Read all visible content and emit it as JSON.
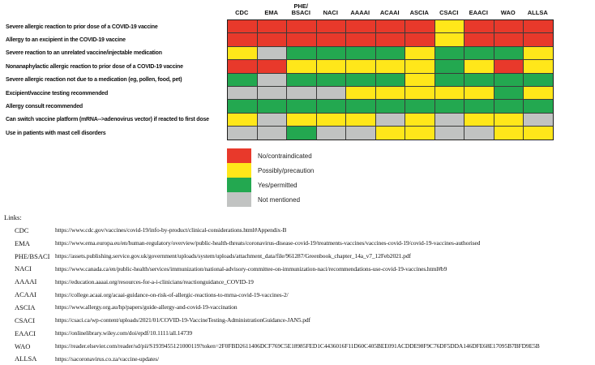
{
  "chart_data": {
    "type": "heatmap",
    "title": "",
    "columns": [
      "CDC",
      "EMA",
      "PHE/\nBSACI",
      "NACI",
      "AAAAI",
      "ACAAI",
      "ASCIA",
      "CSACI",
      "EAACI",
      "WAO",
      "ALLSA"
    ],
    "rows": [
      "Severe allergic reaction to prior dose of a COVID-19 vaccine",
      "Allergy to an excipient in the COVID-19 vaccine",
      "Severe reaction to an unrelated vaccine/injectable medication",
      "Nonanaphylactic allergic reaction to prior dose of a COVID-19 vaccine",
      "Severe allergic reaction not due to a medication (eg, pollen, food, pet)",
      "Excipient/vaccine testing recommended",
      "Allergy consult recommended",
      "Can switch vaccine platform (mRNA-->adenovirus vector) if reacted to first dose",
      "Use in patients with mast cell disorders"
    ],
    "values": [
      [
        "no",
        "no",
        "no",
        "no",
        "no",
        "no",
        "no",
        "possibly",
        "no",
        "no",
        "no"
      ],
      [
        "no",
        "no",
        "no",
        "no",
        "no",
        "no",
        "no",
        "possibly",
        "no",
        "no",
        "no"
      ],
      [
        "possibly",
        "not_mentioned",
        "yes",
        "yes",
        "yes",
        "yes",
        "possibly",
        "yes",
        "yes",
        "yes",
        "possibly"
      ],
      [
        "no",
        "no",
        "possibly",
        "possibly",
        "possibly",
        "possibly",
        "possibly",
        "yes",
        "possibly",
        "no",
        "possibly"
      ],
      [
        "yes",
        "not_mentioned",
        "yes",
        "yes",
        "yes",
        "yes",
        "possibly",
        "yes",
        "yes",
        "yes",
        "yes"
      ],
      [
        "not_mentioned",
        "not_mentioned",
        "not_mentioned",
        "not_mentioned",
        "possibly",
        "possibly",
        "possibly",
        "possibly",
        "possibly",
        "yes",
        "possibly"
      ],
      [
        "yes",
        "yes",
        "yes",
        "yes",
        "yes",
        "yes",
        "yes",
        "yes",
        "yes",
        "yes",
        "yes"
      ],
      [
        "possibly",
        "not_mentioned",
        "possibly",
        "possibly",
        "possibly",
        "not_mentioned",
        "possibly",
        "not_mentioned",
        "possibly",
        "possibly",
        "not_mentioned"
      ],
      [
        "not_mentioned",
        "not_mentioned",
        "yes",
        "not_mentioned",
        "not_mentioned",
        "possibly",
        "possibly",
        "not_mentioned",
        "not_mentioned",
        "possibly",
        "possibly"
      ]
    ],
    "legend": [
      {
        "key": "no",
        "label": "No/contraindicated",
        "color": "#e8392b"
      },
      {
        "key": "possibly",
        "label": "Possibly/precaution",
        "color": "#ffe71a"
      },
      {
        "key": "yes",
        "label": "Yes/permitted",
        "color": "#23a850"
      },
      {
        "key": "not_mentioned",
        "label": "Not mentioned",
        "color": "#c1c3c2"
      }
    ],
    "legend_position": "bottom-left",
    "grid": true
  },
  "links": {
    "heading": "Links:",
    "items": [
      {
        "name": "CDC",
        "url": "https://www.cdc.gov/vaccines/covid-19/info-by-product/clinical-considerations.html#Appendix-B"
      },
      {
        "name": "EMA",
        "url": "https://www.ema.europa.eu/en/human-regulatory/overview/public-health-threats/coronavirus-disease-covid-19/treatments-vaccines/vaccines-covid-19/covid-19-vaccines-authorised"
      },
      {
        "name": "PHE/BSACI",
        "url": "https://assets.publishing.service.gov.uk/government/uploads/system/uploads/attachment_data/file/961287/Greenbook_chapter_14a_v7_12Feb2021.pdf"
      },
      {
        "name": "NACI",
        "url": "https://www.canada.ca/en/public-health/services/immunization/national-advisory-committee-on-immunization-naci/recommendations-use-covid-19-vaccines.html#b9"
      },
      {
        "name": "AAAAI",
        "url": "https://education.aaaai.org/resources-for-a-i-clinicians/reactionguidance_COVID-19"
      },
      {
        "name": "ACAAI",
        "url": "https://college.acaai.org/acaai-guidance-on-risk-of-allergic-reactions-to-mrna-covid-19-vaccines-2/"
      },
      {
        "name": "ASCIA",
        "url": "https://www.allergy.org.au/hp/papers/guide-allergy-and-covid-19-vaccination"
      },
      {
        "name": "CSACI",
        "url": "https://csaci.ca/wp-content/uploads/2021/01/COVID-19-VaccineTesting-AdministrationGuidance-JAN5.pdf"
      },
      {
        "name": "EAACI",
        "url": "https://onlinelibrary.wiley.com/doi/epdf/10.1111/all.14739"
      },
      {
        "name": "WAO",
        "url": "https://reader.elsevier.com/reader/sd/pii/S1939455121000119?token=2F0FBD2611406DCF769C5E18985FED1C4436016F11D60C405BEE091ACDDE98F9C76DF5DDA146DFE68E17095B7BFD9E5B"
      },
      {
        "name": "ALLSA",
        "url": "https://sacoronavirus.co.za/vaccine-updates/"
      }
    ]
  }
}
